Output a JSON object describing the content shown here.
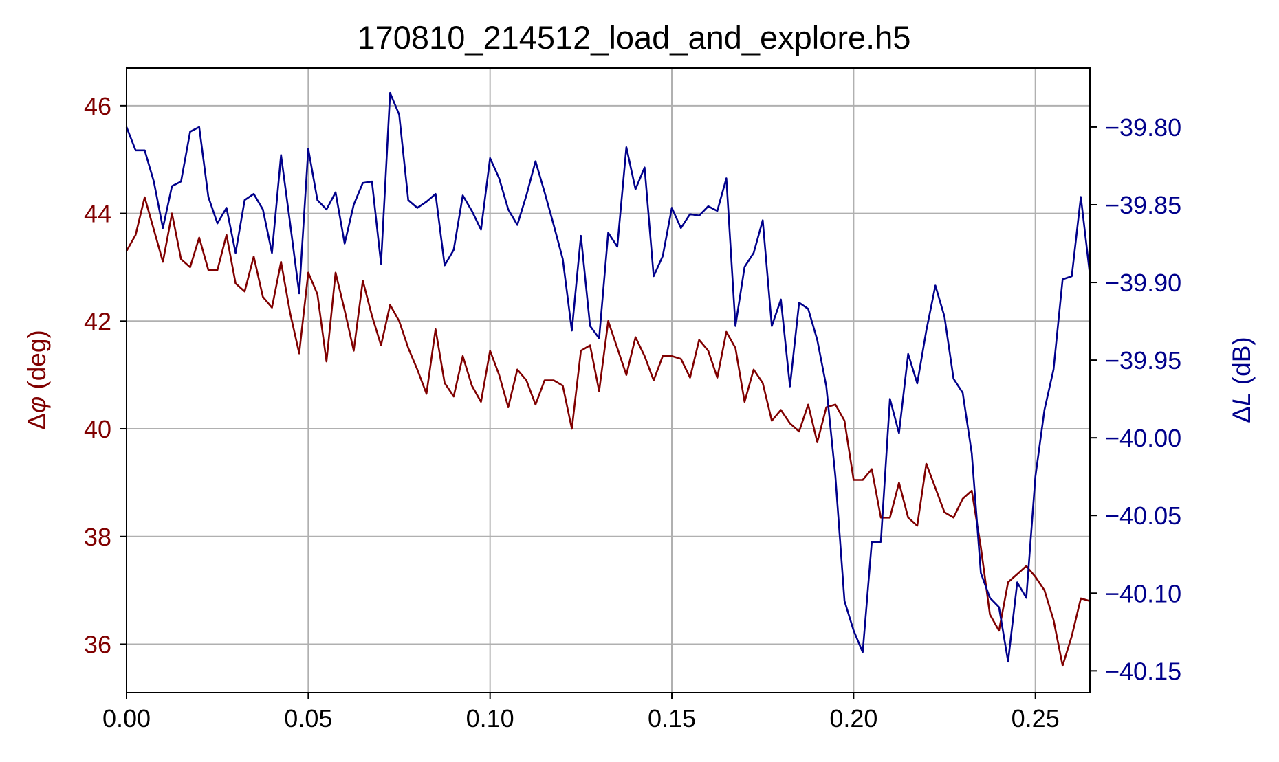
{
  "chart_data": {
    "type": "line",
    "title": "170810_214512_load_and_explore.h5",
    "xlabel": "",
    "ylabel_left_prefix": "Δ",
    "ylabel_left_symbol": "φ",
    "ylabel_left_unit": " (deg)",
    "ylabel_right_prefix": "Δ",
    "ylabel_right_symbol": "L",
    "ylabel_right_unit": " (dB)",
    "xlim": [
      0.0,
      0.265
    ],
    "ylim_left": [
      35.1,
      46.7
    ],
    "ylim_right": [
      -40.164,
      -39.762
    ],
    "x_ticks": [
      0.0,
      0.05,
      0.1,
      0.15,
      0.2,
      0.25
    ],
    "x_tick_labels": [
      "0.00",
      "0.05",
      "0.10",
      "0.15",
      "0.20",
      "0.25"
    ],
    "y_left_ticks": [
      36,
      38,
      40,
      42,
      44,
      46
    ],
    "y_left_tick_labels": [
      "36",
      "38",
      "40",
      "42",
      "44",
      "46"
    ],
    "y_right_ticks": [
      -40.15,
      -40.1,
      -40.05,
      -40.0,
      -39.95,
      -39.9,
      -39.85,
      -39.8
    ],
    "y_right_tick_labels": [
      "−40.15",
      "−40.10",
      "−40.05",
      "−40.00",
      "−39.95",
      "−39.90",
      "−39.85",
      "−39.80"
    ],
    "grid": true,
    "colors": {
      "left": "#800000",
      "right": "#00008b",
      "grid": "#b0b0b0"
    },
    "series": [
      {
        "axis": "left",
        "x": [
          0.0,
          0.0025,
          0.005,
          0.0075,
          0.01,
          0.0125,
          0.015,
          0.0175,
          0.02,
          0.0225,
          0.025,
          0.0275,
          0.03,
          0.0325,
          0.035,
          0.0375,
          0.04,
          0.0425,
          0.045,
          0.0475,
          0.05,
          0.0525,
          0.055,
          0.0575,
          0.06,
          0.0625,
          0.065,
          0.0675,
          0.07,
          0.0725,
          0.075,
          0.0775,
          0.08,
          0.0825,
          0.085,
          0.0875,
          0.09,
          0.0925,
          0.095,
          0.0975,
          0.1,
          0.1025,
          0.105,
          0.1075,
          0.11,
          0.1125,
          0.115,
          0.1175,
          0.12,
          0.1225,
          0.125,
          0.1275,
          0.13,
          0.1325,
          0.135,
          0.1375,
          0.14,
          0.1425,
          0.145,
          0.1475,
          0.15,
          0.1525,
          0.155,
          0.1575,
          0.16,
          0.1625,
          0.165,
          0.1675,
          0.17,
          0.1725,
          0.175,
          0.1775,
          0.18,
          0.1825,
          0.185,
          0.1875,
          0.19,
          0.1925,
          0.195,
          0.1975,
          0.2,
          0.2025,
          0.205,
          0.2075,
          0.21,
          0.2125,
          0.215,
          0.2175,
          0.22,
          0.2225,
          0.225,
          0.2275,
          0.23,
          0.2325,
          0.235,
          0.2375,
          0.24,
          0.2425,
          0.245,
          0.2475,
          0.25,
          0.2525,
          0.255,
          0.2575,
          0.26,
          0.2625,
          0.265
        ],
        "values": [
          43.3,
          43.6,
          44.3,
          43.7,
          43.1,
          44.0,
          43.15,
          43.0,
          43.55,
          42.95,
          42.95,
          43.6,
          42.7,
          42.55,
          43.2,
          42.45,
          42.25,
          43.1,
          42.15,
          41.4,
          42.9,
          42.5,
          41.25,
          42.9,
          42.2,
          41.45,
          42.75,
          42.1,
          41.55,
          42.3,
          42.0,
          41.5,
          41.1,
          40.65,
          41.85,
          40.85,
          40.6,
          41.35,
          40.8,
          40.5,
          41.45,
          41.0,
          40.4,
          41.1,
          40.9,
          40.45,
          40.9,
          40.9,
          40.8,
          40.0,
          41.45,
          41.55,
          40.7,
          42.0,
          41.5,
          41.0,
          41.7,
          41.35,
          40.9,
          41.35,
          41.35,
          41.3,
          40.95,
          41.65,
          41.45,
          40.95,
          41.8,
          41.5,
          40.5,
          41.1,
          40.85,
          40.15,
          40.35,
          40.1,
          39.95,
          40.45,
          39.75,
          40.4,
          40.45,
          40.15,
          39.05,
          39.05,
          39.25,
          38.35,
          38.35,
          39.0,
          38.35,
          38.2,
          39.35,
          38.9,
          38.45,
          38.35,
          38.7,
          38.85,
          37.8,
          36.55,
          36.25,
          37.15,
          37.3,
          37.45,
          37.25,
          37.0,
          36.45,
          35.6,
          36.15,
          36.85,
          36.8
        ]
      },
      {
        "axis": "right",
        "x": [
          0.0,
          0.0025,
          0.005,
          0.0075,
          0.01,
          0.0125,
          0.015,
          0.0175,
          0.02,
          0.0225,
          0.025,
          0.0275,
          0.03,
          0.0325,
          0.035,
          0.0375,
          0.04,
          0.0425,
          0.045,
          0.0475,
          0.05,
          0.0525,
          0.055,
          0.0575,
          0.06,
          0.0625,
          0.065,
          0.0675,
          0.07,
          0.0725,
          0.075,
          0.0775,
          0.08,
          0.0825,
          0.085,
          0.0875,
          0.09,
          0.0925,
          0.095,
          0.0975,
          0.1,
          0.1025,
          0.105,
          0.1075,
          0.11,
          0.1125,
          0.115,
          0.1175,
          0.12,
          0.1225,
          0.125,
          0.1275,
          0.13,
          0.1325,
          0.135,
          0.1375,
          0.14,
          0.1425,
          0.145,
          0.1475,
          0.15,
          0.1525,
          0.155,
          0.1575,
          0.16,
          0.1625,
          0.165,
          0.1675,
          0.17,
          0.1725,
          0.175,
          0.1775,
          0.18,
          0.1825,
          0.185,
          0.1875,
          0.19,
          0.1925,
          0.195,
          0.1975,
          0.2,
          0.2025,
          0.205,
          0.2075,
          0.21,
          0.2125,
          0.215,
          0.2175,
          0.22,
          0.2225,
          0.225,
          0.2275,
          0.23,
          0.2325,
          0.235,
          0.2375,
          0.24,
          0.2425,
          0.245,
          0.2475,
          0.25,
          0.2525,
          0.255,
          0.2575,
          0.26,
          0.2625,
          0.265
        ],
        "values": [
          -39.8,
          -39.815,
          -39.815,
          -39.835,
          -39.865,
          -39.838,
          -39.835,
          -39.803,
          -39.8,
          -39.845,
          -39.862,
          -39.852,
          -39.881,
          -39.847,
          -39.843,
          -39.853,
          -39.881,
          -39.818,
          -39.862,
          -39.907,
          -39.814,
          -39.847,
          -39.853,
          -39.842,
          -39.875,
          -39.85,
          -39.836,
          -39.835,
          -39.888,
          -39.778,
          -39.792,
          -39.847,
          -39.852,
          -39.848,
          -39.843,
          -39.889,
          -39.879,
          -39.844,
          -39.854,
          -39.866,
          -39.82,
          -39.833,
          -39.853,
          -39.863,
          -39.844,
          -39.822,
          -39.842,
          -39.863,
          -39.885,
          -39.931,
          -39.87,
          -39.928,
          -39.936,
          -39.868,
          -39.877,
          -39.813,
          -39.84,
          -39.826,
          -39.896,
          -39.883,
          -39.852,
          -39.865,
          -39.856,
          -39.857,
          -39.851,
          -39.854,
          -39.833,
          -39.928,
          -39.89,
          -39.881,
          -39.86,
          -39.928,
          -39.911,
          -39.967,
          -39.913,
          -39.917,
          -39.937,
          -39.967,
          -40.025,
          -40.105,
          -40.124,
          -40.138,
          -40.067,
          -40.067,
          -39.975,
          -39.997,
          -39.946,
          -39.965,
          -39.931,
          -39.902,
          -39.922,
          -39.962,
          -39.971,
          -40.01,
          -40.087,
          -40.103,
          -40.109,
          -40.144,
          -40.093,
          -40.103,
          -40.025,
          -39.982,
          -39.956,
          -39.898,
          -39.896,
          -39.845,
          -39.895
        ]
      }
    ]
  }
}
